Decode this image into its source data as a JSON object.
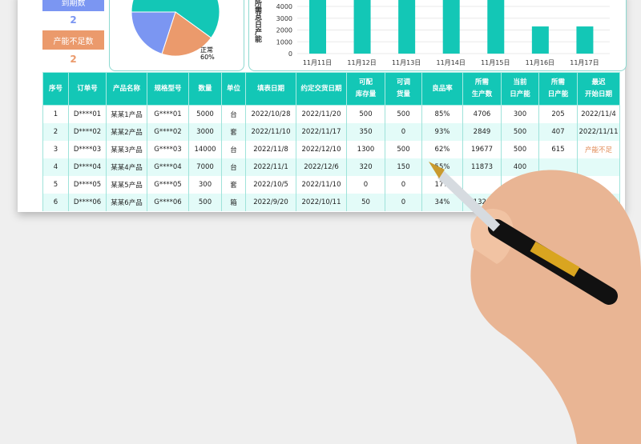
{
  "summary": {
    "due_label": "到期数",
    "due_value": "2",
    "insufficient_label": "产能不足数",
    "insufficient_value": "2"
  },
  "pie": {
    "slices": [
      {
        "label": "正常",
        "percent": "60%",
        "value": 60,
        "color": "#13c7b6"
      },
      {
        "value": 20,
        "color": "#eb9a6c"
      },
      {
        "value": 20,
        "color": "#7b96f2"
      }
    ]
  },
  "chart_data": {
    "type": "bar",
    "ylabel": "所需总日产能",
    "categories": [
      "11月11日",
      "11月12日",
      "11月13日",
      "11月14日",
      "11月15日",
      "11月16日",
      "11月17日"
    ],
    "values": [
      4800,
      4800,
      4800,
      4800,
      4800,
      2300,
      2300
    ],
    "yticks": [
      0,
      1000,
      2000,
      3000,
      4000
    ],
    "color": "#13c7b6",
    "grid": true
  },
  "table": {
    "headers": [
      [
        "序号"
      ],
      [
        "订单号"
      ],
      [
        "产品名称"
      ],
      [
        "规格型号"
      ],
      [
        "数量"
      ],
      [
        "单位"
      ],
      [
        "填表日期"
      ],
      [
        "约定交货日期"
      ],
      [
        "可配",
        "库存量"
      ],
      [
        "可调",
        "货量"
      ],
      [
        "良品率"
      ],
      [
        "所需",
        "生产数"
      ],
      [
        "当前",
        "日产能"
      ],
      [
        "所需",
        "日产能"
      ],
      [
        "最迟",
        "开始日期"
      ]
    ],
    "rows": [
      [
        "1",
        "D****01",
        "某某1产品",
        "G****01",
        "5000",
        "台",
        "2022/10/28",
        "2022/11/20",
        "500",
        "500",
        "85%",
        "4706",
        "300",
        "205",
        "2022/11/4"
      ],
      [
        "2",
        "D****02",
        "某某2产品",
        "G****02",
        "3000",
        "套",
        "2022/11/10",
        "2022/11/17",
        "350",
        "0",
        "93%",
        "2849",
        "500",
        "407",
        "2022/11/11"
      ],
      [
        "3",
        "D****03",
        "某某3产品",
        "G****03",
        "14000",
        "台",
        "2022/11/8",
        "2022/12/10",
        "1300",
        "500",
        "62%",
        "19677",
        "500",
        "615",
        "产能不足"
      ],
      [
        "4",
        "D****04",
        "某某4产品",
        "G****04",
        "7000",
        "台",
        "2022/11/1",
        "2022/12/6",
        "320",
        "150",
        "55%",
        "11873",
        "400",
        "",
        ""
      ],
      [
        "5",
        "D****05",
        "某某5产品",
        "G****05",
        "300",
        "套",
        "2022/10/5",
        "2022/11/10",
        "0",
        "0",
        "17%",
        "",
        "",
        "",
        ""
      ],
      [
        "6",
        "D****06",
        "某某6产品",
        "G****06",
        "500",
        "箱",
        "2022/9/20",
        "2022/10/11",
        "50",
        "0",
        "34%",
        "1324",
        "",
        "",
        ""
      ]
    ]
  }
}
